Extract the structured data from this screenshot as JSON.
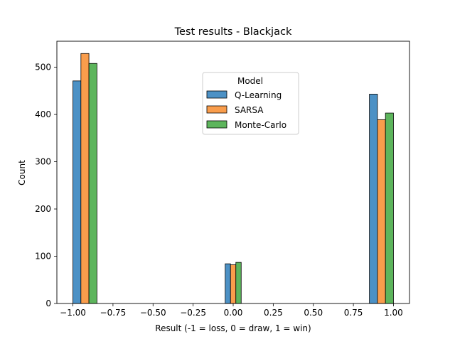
{
  "chart_data": {
    "type": "bar",
    "title": "Test results - Blackjack",
    "xlabel": "Result (-1 = loss, 0 = draw, 1 = win)",
    "ylabel": "Count",
    "xlim": [
      -1.1,
      1.1
    ],
    "ylim": [
      0,
      555
    ],
    "x_ticks": [
      -1.0,
      -0.75,
      -0.5,
      -0.25,
      0.0,
      0.25,
      0.5,
      0.75,
      1.0
    ],
    "x_tick_labels": [
      "−1.00",
      "−0.75",
      "−0.50",
      "−0.25",
      "0.00",
      "0.25",
      "0.50",
      "0.75",
      "1.00"
    ],
    "y_ticks": [
      0,
      100,
      200,
      300,
      400,
      500
    ],
    "y_tick_labels": [
      "0",
      "100",
      "200",
      "300",
      "400",
      "500"
    ],
    "categories": [
      -1,
      0,
      1
    ],
    "bar_edges": [
      [
        -1.0,
        -0.85
      ],
      [
        -0.05,
        0.05
      ],
      [
        0.85,
        1.0
      ]
    ],
    "series": [
      {
        "name": "Q-Learning",
        "color": "#4c91c5",
        "values": [
          471,
          84,
          443
        ]
      },
      {
        "name": "SARSA",
        "color": "#f99d4c",
        "values": [
          529,
          82,
          389
        ]
      },
      {
        "name": "Monte-Carlo",
        "color": "#5db55c",
        "values": [
          508,
          87,
          403
        ]
      }
    ],
    "legend": {
      "title": "Model",
      "position": "upper-center"
    },
    "grid": false
  }
}
